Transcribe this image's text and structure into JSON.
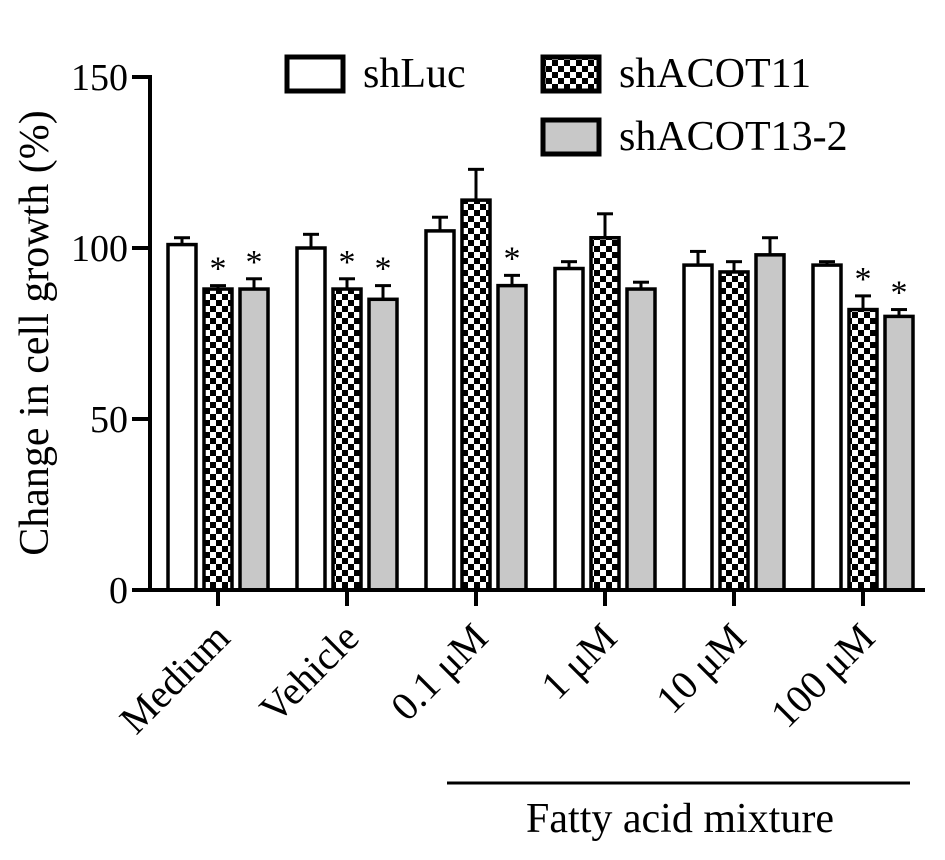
{
  "chart_data": {
    "type": "bar",
    "title": "",
    "ylabel": "Change in cell growth (%)",
    "xlabel": "",
    "ylim": [
      0,
      150
    ],
    "yticks": [
      0,
      50,
      100,
      150
    ],
    "categories": [
      "Medium",
      "Vehicle",
      "0.1 μM",
      "1 μM",
      "10 μM",
      "100 μM"
    ],
    "group_label": "Fatty acid mixture",
    "grouped_categories": [
      "0.1 μM",
      "1 μM",
      "10 μM",
      "100 μM"
    ],
    "legend_position": "top-right",
    "series": [
      {
        "name": "shLuc",
        "fill": "white",
        "values": [
          101,
          100,
          105,
          94,
          95,
          95
        ],
        "errors": [
          2,
          4,
          4,
          2,
          4,
          1
        ],
        "significant": [
          false,
          false,
          false,
          false,
          false,
          false
        ]
      },
      {
        "name": "shACOT11",
        "fill": "checkerboard",
        "values": [
          88,
          88,
          114,
          103,
          93,
          82
        ],
        "errors": [
          1,
          3,
          9,
          7,
          3,
          4
        ],
        "significant": [
          true,
          true,
          false,
          false,
          false,
          true
        ]
      },
      {
        "name": "shACOT13-2",
        "fill": "gray",
        "values": [
          88,
          85,
          89,
          88,
          98,
          80
        ],
        "errors": [
          3,
          4,
          3,
          2,
          5,
          2
        ],
        "significant": [
          true,
          true,
          true,
          false,
          false,
          true
        ]
      }
    ],
    "significance_marker": "*"
  },
  "colors": {
    "axis": "#000000",
    "bar_stroke": "#000000",
    "gray_fill": "#c8c8c8",
    "white_fill": "#ffffff"
  }
}
